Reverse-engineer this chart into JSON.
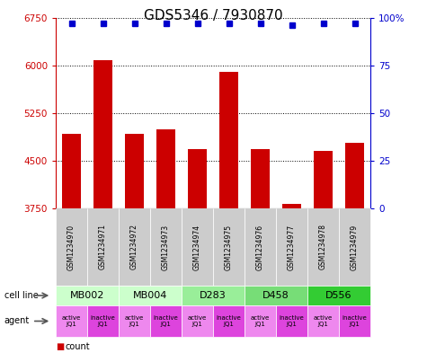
{
  "title": "GDS5346 / 7930870",
  "samples": [
    "GSM1234970",
    "GSM1234971",
    "GSM1234972",
    "GSM1234973",
    "GSM1234974",
    "GSM1234975",
    "GSM1234976",
    "GSM1234977",
    "GSM1234978",
    "GSM1234979"
  ],
  "counts": [
    4920,
    6080,
    4920,
    5000,
    4680,
    5900,
    4680,
    3820,
    4650,
    4780
  ],
  "percentiles": [
    97,
    97,
    97,
    97,
    97,
    97,
    97,
    96,
    97,
    97
  ],
  "ylim": [
    3750,
    6750
  ],
  "yticks": [
    3750,
    4500,
    5250,
    6000,
    6750
  ],
  "right_yticks": [
    0,
    25,
    50,
    75,
    100
  ],
  "right_ylim": [
    0,
    100
  ],
  "bar_color": "#cc0000",
  "dot_color": "#0000cc",
  "cell_lines": [
    {
      "label": "MB002",
      "span": [
        0,
        2
      ],
      "color": "#ccffcc"
    },
    {
      "label": "MB004",
      "span": [
        2,
        4
      ],
      "color": "#ccffcc"
    },
    {
      "label": "D283",
      "span": [
        4,
        6
      ],
      "color": "#99ee99"
    },
    {
      "label": "D458",
      "span": [
        6,
        8
      ],
      "color": "#77dd77"
    },
    {
      "label": "D556",
      "span": [
        8,
        10
      ],
      "color": "#33cc33"
    }
  ],
  "agent_active_color": "#ee88ee",
  "agent_inactive_color": "#dd44dd",
  "sample_box_color": "#cccccc",
  "legend_count_color": "#cc0000",
  "legend_pct_color": "#0000cc",
  "title_fontsize": 11
}
